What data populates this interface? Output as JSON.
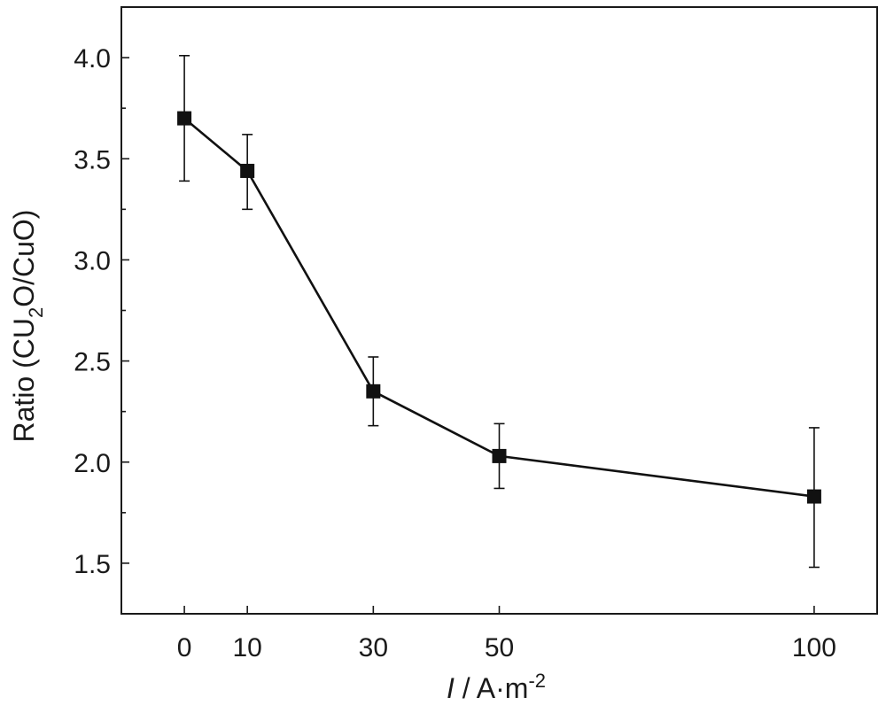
{
  "chart_data": {
    "type": "line",
    "title": "",
    "xlabel": {
      "italic": "I",
      "rest": " / A·m",
      "sup": "-2"
    },
    "ylabel": {
      "before": "Ratio (CU",
      "sub": "2",
      "after": "O/CuO)"
    },
    "xlim": [
      -10,
      110
    ],
    "ylim": [
      1.25,
      4.25
    ],
    "x_ticks": [
      0,
      10,
      30,
      50,
      100
    ],
    "x_tick_labels": [
      "0",
      "10",
      "30",
      "50",
      "100"
    ],
    "y_ticks": [
      1.5,
      2.0,
      2.5,
      3.0,
      3.5,
      4.0
    ],
    "y_tick_labels": [
      "1.5",
      "2.0",
      "2.5",
      "3.0",
      "3.5",
      "4.0"
    ],
    "y_minor_ticks": [
      1.75,
      2.25,
      2.75,
      3.25,
      3.75
    ],
    "grid": false,
    "series": [
      {
        "x": [
          0,
          10,
          30,
          50,
          100
        ],
        "y": [
          3.7,
          3.44,
          2.35,
          2.03,
          1.83
        ],
        "err_low": [
          3.39,
          3.25,
          2.18,
          1.87,
          1.48
        ],
        "err_high": [
          4.01,
          3.62,
          2.52,
          2.19,
          2.17
        ],
        "marker": "square",
        "color": "#111111"
      }
    ]
  }
}
